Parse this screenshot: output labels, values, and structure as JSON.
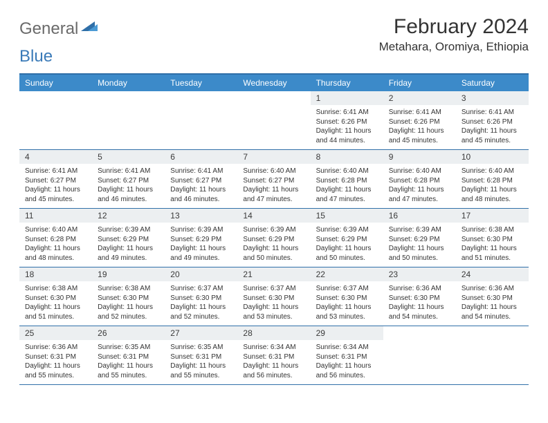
{
  "brand": {
    "name1": "General",
    "name2": "Blue"
  },
  "title": "February 2024",
  "location": "Metahara, Oromiya, Ethiopia",
  "colors": {
    "header_bg": "#3c8ac9",
    "header_text": "#ffffff",
    "border": "#2f6fa8",
    "daybar_bg": "#eceff1",
    "body_text": "#333333",
    "logo_gray": "#6a6a6a",
    "logo_blue": "#3a7ab8"
  },
  "day_headers": [
    "Sunday",
    "Monday",
    "Tuesday",
    "Wednesday",
    "Thursday",
    "Friday",
    "Saturday"
  ],
  "weeks": [
    [
      null,
      null,
      null,
      null,
      {
        "n": "1",
        "sunrise": "Sunrise: 6:41 AM",
        "sunset": "Sunset: 6:26 PM",
        "daylight": "Daylight: 11 hours and 44 minutes."
      },
      {
        "n": "2",
        "sunrise": "Sunrise: 6:41 AM",
        "sunset": "Sunset: 6:26 PM",
        "daylight": "Daylight: 11 hours and 45 minutes."
      },
      {
        "n": "3",
        "sunrise": "Sunrise: 6:41 AM",
        "sunset": "Sunset: 6:26 PM",
        "daylight": "Daylight: 11 hours and 45 minutes."
      }
    ],
    [
      {
        "n": "4",
        "sunrise": "Sunrise: 6:41 AM",
        "sunset": "Sunset: 6:27 PM",
        "daylight": "Daylight: 11 hours and 45 minutes."
      },
      {
        "n": "5",
        "sunrise": "Sunrise: 6:41 AM",
        "sunset": "Sunset: 6:27 PM",
        "daylight": "Daylight: 11 hours and 46 minutes."
      },
      {
        "n": "6",
        "sunrise": "Sunrise: 6:41 AM",
        "sunset": "Sunset: 6:27 PM",
        "daylight": "Daylight: 11 hours and 46 minutes."
      },
      {
        "n": "7",
        "sunrise": "Sunrise: 6:40 AM",
        "sunset": "Sunset: 6:27 PM",
        "daylight": "Daylight: 11 hours and 47 minutes."
      },
      {
        "n": "8",
        "sunrise": "Sunrise: 6:40 AM",
        "sunset": "Sunset: 6:28 PM",
        "daylight": "Daylight: 11 hours and 47 minutes."
      },
      {
        "n": "9",
        "sunrise": "Sunrise: 6:40 AM",
        "sunset": "Sunset: 6:28 PM",
        "daylight": "Daylight: 11 hours and 47 minutes."
      },
      {
        "n": "10",
        "sunrise": "Sunrise: 6:40 AM",
        "sunset": "Sunset: 6:28 PM",
        "daylight": "Daylight: 11 hours and 48 minutes."
      }
    ],
    [
      {
        "n": "11",
        "sunrise": "Sunrise: 6:40 AM",
        "sunset": "Sunset: 6:28 PM",
        "daylight": "Daylight: 11 hours and 48 minutes."
      },
      {
        "n": "12",
        "sunrise": "Sunrise: 6:39 AM",
        "sunset": "Sunset: 6:29 PM",
        "daylight": "Daylight: 11 hours and 49 minutes."
      },
      {
        "n": "13",
        "sunrise": "Sunrise: 6:39 AM",
        "sunset": "Sunset: 6:29 PM",
        "daylight": "Daylight: 11 hours and 49 minutes."
      },
      {
        "n": "14",
        "sunrise": "Sunrise: 6:39 AM",
        "sunset": "Sunset: 6:29 PM",
        "daylight": "Daylight: 11 hours and 50 minutes."
      },
      {
        "n": "15",
        "sunrise": "Sunrise: 6:39 AM",
        "sunset": "Sunset: 6:29 PM",
        "daylight": "Daylight: 11 hours and 50 minutes."
      },
      {
        "n": "16",
        "sunrise": "Sunrise: 6:39 AM",
        "sunset": "Sunset: 6:29 PM",
        "daylight": "Daylight: 11 hours and 50 minutes."
      },
      {
        "n": "17",
        "sunrise": "Sunrise: 6:38 AM",
        "sunset": "Sunset: 6:30 PM",
        "daylight": "Daylight: 11 hours and 51 minutes."
      }
    ],
    [
      {
        "n": "18",
        "sunrise": "Sunrise: 6:38 AM",
        "sunset": "Sunset: 6:30 PM",
        "daylight": "Daylight: 11 hours and 51 minutes."
      },
      {
        "n": "19",
        "sunrise": "Sunrise: 6:38 AM",
        "sunset": "Sunset: 6:30 PM",
        "daylight": "Daylight: 11 hours and 52 minutes."
      },
      {
        "n": "20",
        "sunrise": "Sunrise: 6:37 AM",
        "sunset": "Sunset: 6:30 PM",
        "daylight": "Daylight: 11 hours and 52 minutes."
      },
      {
        "n": "21",
        "sunrise": "Sunrise: 6:37 AM",
        "sunset": "Sunset: 6:30 PM",
        "daylight": "Daylight: 11 hours and 53 minutes."
      },
      {
        "n": "22",
        "sunrise": "Sunrise: 6:37 AM",
        "sunset": "Sunset: 6:30 PM",
        "daylight": "Daylight: 11 hours and 53 minutes."
      },
      {
        "n": "23",
        "sunrise": "Sunrise: 6:36 AM",
        "sunset": "Sunset: 6:30 PM",
        "daylight": "Daylight: 11 hours and 54 minutes."
      },
      {
        "n": "24",
        "sunrise": "Sunrise: 6:36 AM",
        "sunset": "Sunset: 6:30 PM",
        "daylight": "Daylight: 11 hours and 54 minutes."
      }
    ],
    [
      {
        "n": "25",
        "sunrise": "Sunrise: 6:36 AM",
        "sunset": "Sunset: 6:31 PM",
        "daylight": "Daylight: 11 hours and 55 minutes."
      },
      {
        "n": "26",
        "sunrise": "Sunrise: 6:35 AM",
        "sunset": "Sunset: 6:31 PM",
        "daylight": "Daylight: 11 hours and 55 minutes."
      },
      {
        "n": "27",
        "sunrise": "Sunrise: 6:35 AM",
        "sunset": "Sunset: 6:31 PM",
        "daylight": "Daylight: 11 hours and 55 minutes."
      },
      {
        "n": "28",
        "sunrise": "Sunrise: 6:34 AM",
        "sunset": "Sunset: 6:31 PM",
        "daylight": "Daylight: 11 hours and 56 minutes."
      },
      {
        "n": "29",
        "sunrise": "Sunrise: 6:34 AM",
        "sunset": "Sunset: 6:31 PM",
        "daylight": "Daylight: 11 hours and 56 minutes."
      },
      null,
      null
    ]
  ]
}
